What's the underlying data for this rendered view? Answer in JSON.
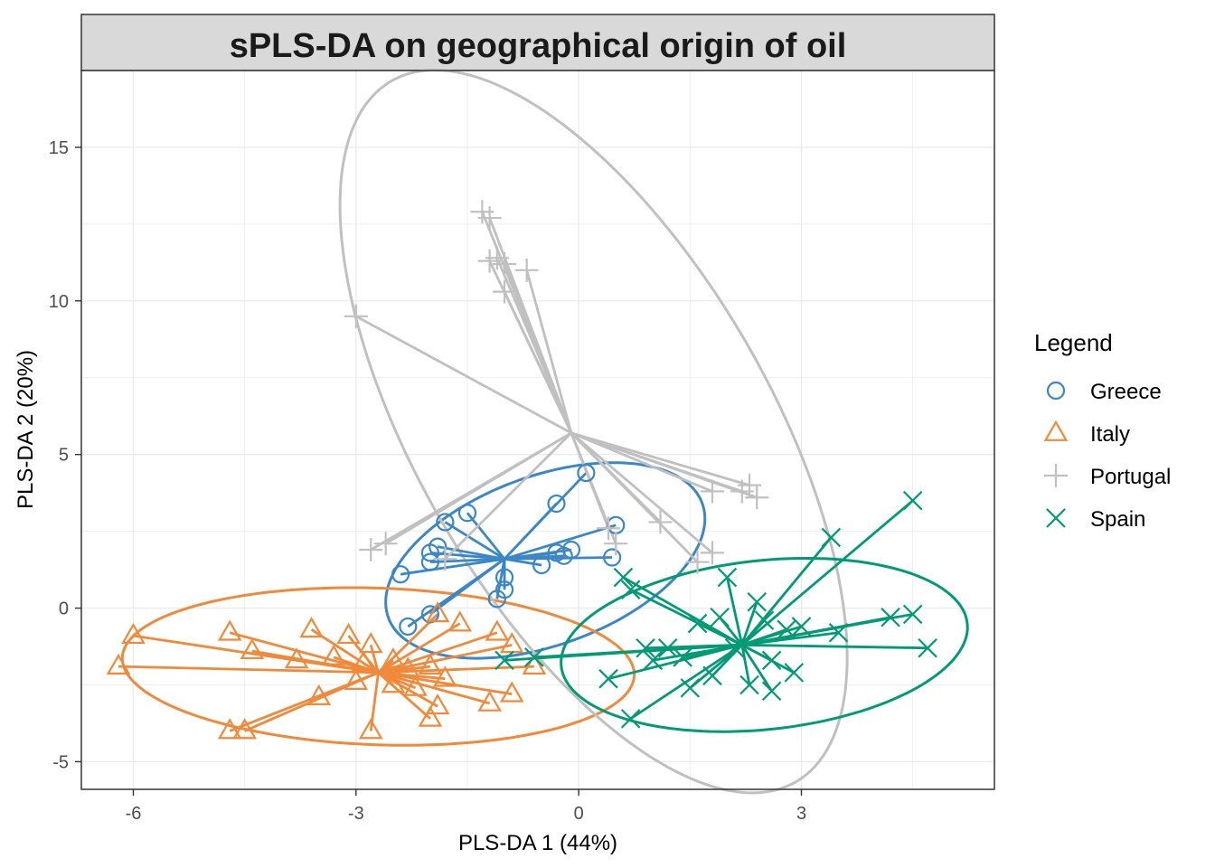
{
  "chart_data": {
    "type": "scatter",
    "title": "sPLS-DA on geographical origin of oil",
    "xlabel": "PLS-DA 1 (44%)",
    "ylabel": "PLS-DA 2 (20%)",
    "xlim": [
      -6.7,
      5.6
    ],
    "ylim": [
      -5.9,
      17.5
    ],
    "xticks": [
      -6,
      -3,
      0,
      3
    ],
    "yticks": [
      -5,
      0,
      5,
      10,
      15
    ],
    "grid": true,
    "legend": {
      "title": "Legend",
      "position": "right"
    },
    "series": [
      {
        "name": "Greece",
        "color": "#3a87c8",
        "marker": "circle",
        "centroid": [
          -1.0,
          1.6
        ],
        "ellipse": {
          "center": [
            -0.45,
            1.55
          ],
          "rx": 4.5,
          "ry": 2.75,
          "angle": 20
        },
        "points": [
          [
            0.1,
            4.4
          ],
          [
            -0.3,
            3.4
          ],
          [
            -1.5,
            3.1
          ],
          [
            -1.8,
            2.8
          ],
          [
            0.5,
            2.7
          ],
          [
            -1.9,
            2.0
          ],
          [
            -2.0,
            1.8
          ],
          [
            -2.0,
            1.5
          ],
          [
            -0.1,
            1.9
          ],
          [
            -0.3,
            1.8
          ],
          [
            -0.2,
            1.7
          ],
          [
            0.45,
            1.65
          ],
          [
            -2.4,
            1.1
          ],
          [
            -0.5,
            1.4
          ],
          [
            -1.0,
            1.0
          ],
          [
            -1.0,
            0.6
          ],
          [
            -1.1,
            0.3
          ],
          [
            -2.0,
            -0.2
          ],
          [
            -2.3,
            -0.6
          ]
        ]
      },
      {
        "name": "Italy",
        "color": "#f0893a",
        "marker": "triangle",
        "centroid": [
          -2.7,
          -2.1
        ],
        "ellipse": {
          "center": [
            -2.7,
            -1.9
          ],
          "rx": 6.9,
          "ry": 2.55,
          "angle": -2
        },
        "points": [
          [
            -6.0,
            -0.9
          ],
          [
            -6.2,
            -1.9
          ],
          [
            -4.7,
            -0.8
          ],
          [
            -4.4,
            -1.4
          ],
          [
            -3.6,
            -0.7
          ],
          [
            -3.1,
            -0.9
          ],
          [
            -3.8,
            -1.7
          ],
          [
            -2.8,
            -1.2
          ],
          [
            -2.5,
            -1.7
          ],
          [
            -1.9,
            -0.2
          ],
          [
            -1.6,
            -0.5
          ],
          [
            -1.1,
            -0.8
          ],
          [
            -0.9,
            -1.2
          ],
          [
            -0.6,
            -1.9
          ],
          [
            -0.9,
            -2.8
          ],
          [
            -1.2,
            -3.1
          ],
          [
            -1.9,
            -3.2
          ],
          [
            -2.2,
            -2.6
          ],
          [
            -2.5,
            -2.5
          ],
          [
            -3.5,
            -2.9
          ],
          [
            -4.7,
            -4.0
          ],
          [
            -4.5,
            -4.0
          ],
          [
            -2.8,
            -4.0
          ],
          [
            -2.0,
            -3.6
          ],
          [
            -3.0,
            -2.4
          ],
          [
            -2.9,
            -1.8
          ],
          [
            -3.3,
            -1.6
          ],
          [
            -2.3,
            -2.0
          ],
          [
            -1.8,
            -2.3
          ],
          [
            -2.0,
            -1.9
          ]
        ]
      },
      {
        "name": "Portugal",
        "color": "#c0c0c0",
        "marker": "plus",
        "centroid": [
          -0.1,
          5.7
        ],
        "ellipse": {
          "center": [
            0.2,
            5.75
          ],
          "rx": 10.9,
          "ry": 5.75,
          "angle": -60
        },
        "points": [
          [
            -1.3,
            12.9
          ],
          [
            -1.2,
            12.7
          ],
          [
            -1.1,
            11.4
          ],
          [
            -1.2,
            11.3
          ],
          [
            -1.0,
            11.2
          ],
          [
            -0.7,
            11.0
          ],
          [
            -1.0,
            10.3
          ],
          [
            -3.0,
            9.5
          ],
          [
            2.3,
            4.0
          ],
          [
            2.2,
            3.8
          ],
          [
            2.4,
            3.6
          ],
          [
            1.8,
            3.8
          ],
          [
            -2.8,
            1.9
          ],
          [
            -2.6,
            2.1
          ],
          [
            1.1,
            2.8
          ],
          [
            1.8,
            1.8
          ],
          [
            1.6,
            1.5
          ],
          [
            0.4,
            2.6
          ],
          [
            0.5,
            2.1
          ],
          [
            -1.8,
            1.6
          ]
        ]
      },
      {
        "name": "Spain",
        "color": "#009a74",
        "marker": "x",
        "centroid": [
          2.2,
          -1.2
        ],
        "ellipse": {
          "center": [
            2.5,
            -1.2
          ],
          "rx": 5.5,
          "ry": 2.75,
          "angle": 6
        },
        "points": [
          [
            4.5,
            3.5
          ],
          [
            3.4,
            2.3
          ],
          [
            2.0,
            1.0
          ],
          [
            0.6,
            1.0
          ],
          [
            0.7,
            0.6
          ],
          [
            4.5,
            -0.2
          ],
          [
            4.2,
            -0.3
          ],
          [
            4.7,
            -1.3
          ],
          [
            3.5,
            -0.8
          ],
          [
            3.0,
            -0.6
          ],
          [
            2.8,
            -0.7
          ],
          [
            2.5,
            -0.4
          ],
          [
            2.4,
            0.2
          ],
          [
            1.9,
            -0.3
          ],
          [
            1.6,
            -0.5
          ],
          [
            1.2,
            -1.3
          ],
          [
            1.0,
            -1.7
          ],
          [
            0.4,
            -2.3
          ],
          [
            0.7,
            -3.6
          ],
          [
            1.5,
            -2.6
          ],
          [
            1.8,
            -2.2
          ],
          [
            2.3,
            -2.5
          ],
          [
            2.6,
            -2.7
          ],
          [
            2.9,
            -2.1
          ],
          [
            2.6,
            -1.7
          ],
          [
            2.1,
            -1.3
          ],
          [
            -0.6,
            -1.6
          ],
          [
            -1.0,
            -1.7
          ],
          [
            0.9,
            -1.3
          ],
          [
            1.4,
            -1.6
          ]
        ]
      }
    ]
  }
}
